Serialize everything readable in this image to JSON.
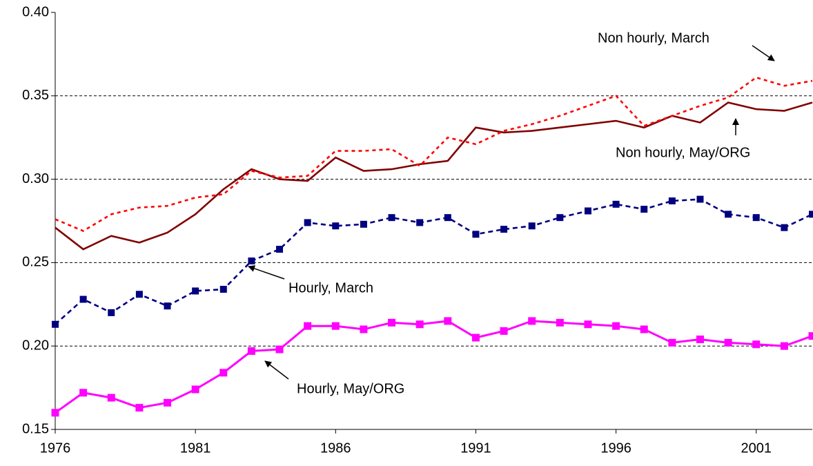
{
  "chart_data": {
    "type": "line",
    "x": [
      1976,
      1977,
      1978,
      1979,
      1980,
      1981,
      1982,
      1983,
      1984,
      1985,
      1986,
      1987,
      1988,
      1989,
      1990,
      1991,
      1992,
      1993,
      1994,
      1995,
      1996,
      1997,
      1998,
      1999,
      2000,
      2001,
      2002,
      2003
    ],
    "xlim": [
      1976,
      2003
    ],
    "xticks": [
      1976,
      1981,
      1986,
      1991,
      1996,
      2001
    ],
    "ylim": [
      0.15,
      0.4
    ],
    "yticks": [
      0.15,
      {
        "value": 0.2,
        "label": "0.20"
      },
      0.25,
      {
        "value": 0.3,
        "label": "0.30"
      },
      0.35,
      {
        "value": 0.4,
        "label": "0.40"
      }
    ],
    "grid": true,
    "series": [
      {
        "name": "Hourly, May/ORG",
        "color": "#ff00ff",
        "line_style": "solid",
        "marker": "square",
        "values": [
          0.16,
          0.172,
          0.169,
          0.163,
          0.166,
          0.174,
          0.184,
          0.197,
          0.198,
          0.212,
          0.212,
          0.21,
          0.214,
          0.213,
          0.215,
          0.205,
          0.209,
          0.215,
          0.214,
          0.213,
          0.212,
          0.21,
          0.202,
          0.204,
          0.202,
          0.201,
          0.2,
          0.206
        ]
      },
      {
        "name": "Hourly, March",
        "color": "#000080",
        "line_style": "dashed",
        "marker": "square",
        "values": [
          0.213,
          0.228,
          0.22,
          0.231,
          0.224,
          0.233,
          0.234,
          0.251,
          0.258,
          0.274,
          0.272,
          0.273,
          0.277,
          0.274,
          0.277,
          0.267,
          0.27,
          0.272,
          0.277,
          0.281,
          0.285,
          0.282,
          0.287,
          0.288,
          0.279,
          0.277,
          0.271,
          0.279
        ]
      },
      {
        "name": "Non hourly, May/ORG",
        "color": "#800000",
        "line_style": "solid",
        "marker": "none",
        "values": [
          0.271,
          0.258,
          0.266,
          0.262,
          0.268,
          0.279,
          0.294,
          0.306,
          0.3,
          0.299,
          0.313,
          0.305,
          0.306,
          0.309,
          0.311,
          0.331,
          0.328,
          0.329,
          0.331,
          0.333,
          0.335,
          0.331,
          0.338,
          0.334,
          0.346,
          0.342,
          0.341,
          0.346
        ]
      },
      {
        "name": "Non hourly, March",
        "color": "#ff0000",
        "line_style": "dotted",
        "marker": "none",
        "values": [
          0.276,
          0.269,
          0.279,
          0.283,
          0.284,
          0.289,
          0.291,
          0.305,
          0.301,
          0.302,
          0.317,
          0.317,
          0.318,
          0.308,
          0.325,
          0.321,
          0.329,
          0.333,
          0.338,
          0.344,
          0.35,
          0.332,
          0.338,
          0.344,
          0.349,
          0.361,
          0.356,
          0.359
        ]
      }
    ]
  }
}
